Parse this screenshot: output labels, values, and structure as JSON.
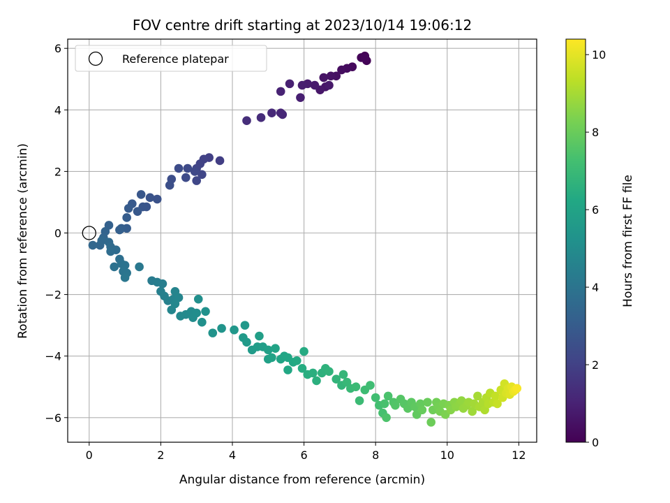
{
  "chart_data": {
    "type": "scatter",
    "title": "FOV centre drift starting at 2023/10/14 19:06:12",
    "xlabel": "Angular distance from reference (arcmin)",
    "ylabel": "Rotation from reference (arcmin)",
    "xlim": [
      -0.6,
      12.5
    ],
    "ylim": [
      -6.8,
      6.3
    ],
    "xticks": [
      0,
      2,
      4,
      6,
      8,
      10,
      12
    ],
    "yticks": [
      -6,
      -4,
      -2,
      0,
      2,
      4,
      6
    ],
    "grid": true,
    "legend": {
      "position": "top-left",
      "entries": [
        "Reference platepar"
      ]
    },
    "colorbar": {
      "label": "Hours from first FF file",
      "cmap": "viridis",
      "range": [
        0,
        10.4
      ],
      "ticks": [
        0,
        2,
        4,
        6,
        8,
        10
      ]
    },
    "reference_point": {
      "x": 0,
      "y": 0
    },
    "series": [
      {
        "points": [
          {
            "x": 7.7,
            "y": 5.75,
            "c": 0.0
          },
          {
            "x": 7.75,
            "y": 5.6,
            "c": 0.05
          },
          {
            "x": 7.6,
            "y": 5.7,
            "c": 0.1
          },
          {
            "x": 7.7,
            "y": 5.7,
            "c": 0.15
          },
          {
            "x": 7.35,
            "y": 5.4,
            "c": 0.25
          },
          {
            "x": 7.2,
            "y": 5.35,
            "c": 0.3
          },
          {
            "x": 7.05,
            "y": 5.3,
            "c": 0.35
          },
          {
            "x": 6.9,
            "y": 5.1,
            "c": 0.45
          },
          {
            "x": 6.75,
            "y": 5.1,
            "c": 0.5
          },
          {
            "x": 6.55,
            "y": 5.05,
            "c": 0.55
          },
          {
            "x": 6.6,
            "y": 4.75,
            "c": 0.6
          },
          {
            "x": 6.45,
            "y": 4.65,
            "c": 0.65
          },
          {
            "x": 6.7,
            "y": 4.8,
            "c": 0.7
          },
          {
            "x": 6.3,
            "y": 4.8,
            "c": 0.75
          },
          {
            "x": 6.1,
            "y": 4.85,
            "c": 0.8
          },
          {
            "x": 5.95,
            "y": 4.8,
            "c": 0.85
          },
          {
            "x": 5.9,
            "y": 4.4,
            "c": 0.9
          },
          {
            "x": 5.6,
            "y": 4.85,
            "c": 0.95
          },
          {
            "x": 5.35,
            "y": 4.6,
            "c": 1.0
          },
          {
            "x": 5.35,
            "y": 3.9,
            "c": 1.1
          },
          {
            "x": 5.4,
            "y": 3.85,
            "c": 1.15
          },
          {
            "x": 5.1,
            "y": 3.9,
            "c": 1.2
          },
          {
            "x": 4.8,
            "y": 3.75,
            "c": 1.3
          },
          {
            "x": 4.4,
            "y": 3.65,
            "c": 1.35
          },
          {
            "x": 3.65,
            "y": 2.35,
            "c": 1.9
          },
          {
            "x": 3.35,
            "y": 2.45,
            "c": 1.95
          },
          {
            "x": 3.2,
            "y": 2.4,
            "c": 2.0
          },
          {
            "x": 3.1,
            "y": 2.25,
            "c": 2.05
          },
          {
            "x": 3.0,
            "y": 2.1,
            "c": 2.1
          },
          {
            "x": 3.15,
            "y": 1.9,
            "c": 2.15
          },
          {
            "x": 3.0,
            "y": 1.7,
            "c": 2.2
          },
          {
            "x": 2.95,
            "y": 2.0,
            "c": 2.25
          },
          {
            "x": 2.75,
            "y": 2.1,
            "c": 2.3
          },
          {
            "x": 2.7,
            "y": 1.8,
            "c": 2.35
          },
          {
            "x": 2.5,
            "y": 2.1,
            "c": 2.4
          },
          {
            "x": 2.3,
            "y": 1.75,
            "c": 2.45
          },
          {
            "x": 2.25,
            "y": 1.55,
            "c": 2.5
          },
          {
            "x": 1.9,
            "y": 1.1,
            "c": 2.6
          },
          {
            "x": 1.7,
            "y": 1.15,
            "c": 2.65
          },
          {
            "x": 1.6,
            "y": 0.85,
            "c": 2.7
          },
          {
            "x": 1.5,
            "y": 0.85,
            "c": 2.75
          },
          {
            "x": 1.45,
            "y": 1.25,
            "c": 2.8
          },
          {
            "x": 1.35,
            "y": 0.7,
            "c": 2.85
          },
          {
            "x": 1.2,
            "y": 0.95,
            "c": 2.9
          },
          {
            "x": 1.1,
            "y": 0.8,
            "c": 2.95
          },
          {
            "x": 1.05,
            "y": 0.5,
            "c": 3.0
          },
          {
            "x": 1.05,
            "y": 0.15,
            "c": 3.05
          },
          {
            "x": 0.9,
            "y": 0.15,
            "c": 3.1
          },
          {
            "x": 0.85,
            "y": 0.1,
            "c": 3.15
          },
          {
            "x": 0.55,
            "y": 0.25,
            "c": 3.2
          },
          {
            "x": 0.45,
            "y": 0.05,
            "c": 3.3
          },
          {
            "x": 0.4,
            "y": -0.15,
            "c": 3.35
          },
          {
            "x": 0.3,
            "y": -0.4,
            "c": 3.4
          },
          {
            "x": 0.1,
            "y": -0.4,
            "c": 3.45
          },
          {
            "x": 0.35,
            "y": -0.25,
            "c": 3.5
          },
          {
            "x": 0.55,
            "y": -0.3,
            "c": 3.55
          },
          {
            "x": 0.6,
            "y": -0.45,
            "c": 3.6
          },
          {
            "x": 0.75,
            "y": -0.55,
            "c": 3.65
          },
          {
            "x": 0.6,
            "y": -0.6,
            "c": 3.7
          },
          {
            "x": 0.85,
            "y": -0.85,
            "c": 3.8
          },
          {
            "x": 0.7,
            "y": -1.1,
            "c": 3.85
          },
          {
            "x": 0.9,
            "y": -1.0,
            "c": 3.9
          },
          {
            "x": 1.0,
            "y": -1.05,
            "c": 3.95
          },
          {
            "x": 0.95,
            "y": -1.25,
            "c": 4.0
          },
          {
            "x": 1.05,
            "y": -1.3,
            "c": 4.05
          },
          {
            "x": 1.0,
            "y": -1.45,
            "c": 4.1
          },
          {
            "x": 1.4,
            "y": -1.1,
            "c": 4.15
          },
          {
            "x": 1.75,
            "y": -1.55,
            "c": 4.3
          },
          {
            "x": 1.9,
            "y": -1.6,
            "c": 4.35
          },
          {
            "x": 2.05,
            "y": -1.65,
            "c": 4.4
          },
          {
            "x": 2.0,
            "y": -1.9,
            "c": 4.45
          },
          {
            "x": 2.1,
            "y": -2.05,
            "c": 4.5
          },
          {
            "x": 2.2,
            "y": -2.2,
            "c": 4.55
          },
          {
            "x": 2.35,
            "y": -2.15,
            "c": 4.6
          },
          {
            "x": 2.4,
            "y": -1.9,
            "c": 4.65
          },
          {
            "x": 2.5,
            "y": -2.1,
            "c": 4.7
          },
          {
            "x": 2.3,
            "y": -2.5,
            "c": 4.75
          },
          {
            "x": 2.4,
            "y": -2.3,
            "c": 4.8
          },
          {
            "x": 2.55,
            "y": -2.7,
            "c": 4.85
          },
          {
            "x": 2.7,
            "y": -2.65,
            "c": 4.9
          },
          {
            "x": 2.85,
            "y": -2.55,
            "c": 4.95
          },
          {
            "x": 2.9,
            "y": -2.75,
            "c": 5.0
          },
          {
            "x": 3.0,
            "y": -2.6,
            "c": 5.05
          },
          {
            "x": 3.05,
            "y": -2.15,
            "c": 5.1
          },
          {
            "x": 3.15,
            "y": -2.9,
            "c": 5.15
          },
          {
            "x": 3.25,
            "y": -2.55,
            "c": 5.2
          },
          {
            "x": 3.45,
            "y": -3.25,
            "c": 5.3
          },
          {
            "x": 3.7,
            "y": -3.1,
            "c": 5.35
          },
          {
            "x": 4.05,
            "y": -3.15,
            "c": 5.45
          },
          {
            "x": 4.35,
            "y": -3.0,
            "c": 5.5
          },
          {
            "x": 4.3,
            "y": -3.4,
            "c": 5.55
          },
          {
            "x": 4.4,
            "y": -3.55,
            "c": 5.6
          },
          {
            "x": 4.55,
            "y": -3.8,
            "c": 5.65
          },
          {
            "x": 4.7,
            "y": -3.7,
            "c": 5.7
          },
          {
            "x": 4.85,
            "y": -3.7,
            "c": 5.75
          },
          {
            "x": 4.75,
            "y": -3.35,
            "c": 5.8
          },
          {
            "x": 5.0,
            "y": -3.8,
            "c": 5.85
          },
          {
            "x": 5.0,
            "y": -4.1,
            "c": 5.9
          },
          {
            "x": 5.1,
            "y": -4.05,
            "c": 5.95
          },
          {
            "x": 5.2,
            "y": -3.75,
            "c": 6.0
          },
          {
            "x": 5.35,
            "y": -4.1,
            "c": 6.05
          },
          {
            "x": 5.45,
            "y": -4.0,
            "c": 6.1
          },
          {
            "x": 5.55,
            "y": -4.05,
            "c": 6.15
          },
          {
            "x": 5.55,
            "y": -4.45,
            "c": 6.2
          },
          {
            "x": 5.7,
            "y": -4.2,
            "c": 6.25
          },
          {
            "x": 5.8,
            "y": -4.15,
            "c": 6.3
          },
          {
            "x": 6.0,
            "y": -3.85,
            "c": 6.35
          },
          {
            "x": 5.95,
            "y": -4.4,
            "c": 6.4
          },
          {
            "x": 6.1,
            "y": -4.6,
            "c": 6.45
          },
          {
            "x": 6.25,
            "y": -4.55,
            "c": 6.5
          },
          {
            "x": 6.35,
            "y": -4.8,
            "c": 6.55
          },
          {
            "x": 6.5,
            "y": -4.55,
            "c": 6.6
          },
          {
            "x": 6.6,
            "y": -4.4,
            "c": 6.65
          },
          {
            "x": 6.7,
            "y": -4.5,
            "c": 6.7
          },
          {
            "x": 6.9,
            "y": -4.75,
            "c": 6.75
          },
          {
            "x": 7.05,
            "y": -4.95,
            "c": 6.8
          },
          {
            "x": 7.1,
            "y": -4.6,
            "c": 6.85
          },
          {
            "x": 7.2,
            "y": -4.85,
            "c": 6.9
          },
          {
            "x": 7.3,
            "y": -5.05,
            "c": 6.95
          },
          {
            "x": 7.45,
            "y": -5.0,
            "c": 7.0
          },
          {
            "x": 7.55,
            "y": -5.45,
            "c": 7.05
          },
          {
            "x": 7.7,
            "y": -5.1,
            "c": 7.1
          },
          {
            "x": 7.85,
            "y": -4.95,
            "c": 7.15
          },
          {
            "x": 8.0,
            "y": -5.35,
            "c": 7.2
          },
          {
            "x": 8.1,
            "y": -5.6,
            "c": 7.25
          },
          {
            "x": 8.2,
            "y": -5.85,
            "c": 7.3
          },
          {
            "x": 8.25,
            "y": -5.55,
            "c": 7.35
          },
          {
            "x": 8.35,
            "y": -5.3,
            "c": 7.4
          },
          {
            "x": 8.3,
            "y": -6.0,
            "c": 7.45
          },
          {
            "x": 8.5,
            "y": -5.5,
            "c": 7.5
          },
          {
            "x": 8.55,
            "y": -5.6,
            "c": 7.55
          },
          {
            "x": 8.7,
            "y": -5.4,
            "c": 7.6
          },
          {
            "x": 8.8,
            "y": -5.55,
            "c": 7.65
          },
          {
            "x": 8.9,
            "y": -5.7,
            "c": 7.7
          },
          {
            "x": 9.0,
            "y": -5.5,
            "c": 7.75
          },
          {
            "x": 9.1,
            "y": -5.65,
            "c": 7.8
          },
          {
            "x": 9.15,
            "y": -5.9,
            "c": 7.85
          },
          {
            "x": 9.25,
            "y": -5.55,
            "c": 7.9
          },
          {
            "x": 9.3,
            "y": -5.75,
            "c": 7.95
          },
          {
            "x": 9.45,
            "y": -5.5,
            "c": 8.0
          },
          {
            "x": 9.55,
            "y": -6.15,
            "c": 8.05
          },
          {
            "x": 9.6,
            "y": -5.75,
            "c": 8.1
          },
          {
            "x": 9.7,
            "y": -5.5,
            "c": 8.15
          },
          {
            "x": 9.75,
            "y": -5.65,
            "c": 8.2
          },
          {
            "x": 9.8,
            "y": -5.8,
            "c": 8.25
          },
          {
            "x": 9.9,
            "y": -5.55,
            "c": 8.3
          },
          {
            "x": 9.95,
            "y": -5.9,
            "c": 8.35
          },
          {
            "x": 10.05,
            "y": -5.6,
            "c": 8.4
          },
          {
            "x": 10.1,
            "y": -5.75,
            "c": 8.5
          },
          {
            "x": 10.2,
            "y": -5.5,
            "c": 8.55
          },
          {
            "x": 10.25,
            "y": -5.65,
            "c": 8.6
          },
          {
            "x": 10.35,
            "y": -5.55,
            "c": 8.65
          },
          {
            "x": 10.4,
            "y": -5.45,
            "c": 8.7
          },
          {
            "x": 10.45,
            "y": -5.7,
            "c": 8.75
          },
          {
            "x": 10.55,
            "y": -5.6,
            "c": 8.8
          },
          {
            "x": 10.6,
            "y": -5.5,
            "c": 8.85
          },
          {
            "x": 10.7,
            "y": -5.8,
            "c": 8.9
          },
          {
            "x": 10.75,
            "y": -5.55,
            "c": 8.95
          },
          {
            "x": 10.85,
            "y": -5.3,
            "c": 9.0
          },
          {
            "x": 10.9,
            "y": -5.65,
            "c": 9.05
          },
          {
            "x": 11.0,
            "y": -5.5,
            "c": 9.1
          },
          {
            "x": 11.05,
            "y": -5.75,
            "c": 9.15
          },
          {
            "x": 11.1,
            "y": -5.35,
            "c": 9.2
          },
          {
            "x": 11.15,
            "y": -5.55,
            "c": 9.25
          },
          {
            "x": 11.2,
            "y": -5.2,
            "c": 9.3
          },
          {
            "x": 11.3,
            "y": -5.5,
            "c": 9.4
          },
          {
            "x": 11.35,
            "y": -5.3,
            "c": 9.45
          },
          {
            "x": 11.4,
            "y": -5.55,
            "c": 9.5
          },
          {
            "x": 11.5,
            "y": -5.1,
            "c": 9.6
          },
          {
            "x": 11.55,
            "y": -5.35,
            "c": 9.65
          },
          {
            "x": 11.6,
            "y": -4.9,
            "c": 9.7
          },
          {
            "x": 11.65,
            "y": -5.2,
            "c": 9.8
          },
          {
            "x": 11.7,
            "y": -5.05,
            "c": 9.85
          },
          {
            "x": 11.75,
            "y": -5.25,
            "c": 9.9
          },
          {
            "x": 11.8,
            "y": -5.0,
            "c": 10.0
          },
          {
            "x": 11.85,
            "y": -5.15,
            "c": 10.1
          },
          {
            "x": 11.9,
            "y": -5.1,
            "c": 10.2
          },
          {
            "x": 11.95,
            "y": -5.05,
            "c": 10.3
          }
        ]
      }
    ]
  }
}
